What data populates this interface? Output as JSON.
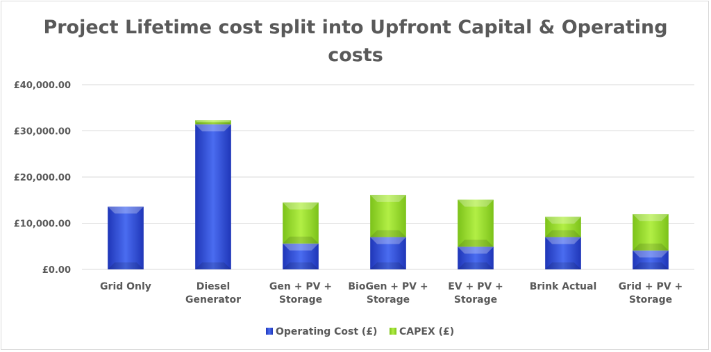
{
  "chart_data": {
    "type": "bar",
    "stacked": true,
    "title_lines": [
      "Project Lifetime cost split into Upfront Capital & Operating",
      "costs"
    ],
    "categories": [
      [
        "Grid Only"
      ],
      [
        "Diesel",
        "Generator"
      ],
      [
        "Gen + PV +",
        "Storage"
      ],
      [
        "BioGen + PV +",
        "Storage"
      ],
      [
        "EV + PV +",
        "Storage"
      ],
      [
        "Brink Actual"
      ],
      [
        "Grid + PV +",
        "Storage"
      ]
    ],
    "series": [
      {
        "name": "Operating Cost (£)",
        "color": "#2f4fd8",
        "values": [
          13600,
          31400,
          5600,
          7000,
          4900,
          7000,
          4100
        ]
      },
      {
        "name": "CAPEX (£)",
        "color": "#92d82b",
        "values": [
          0,
          900,
          8900,
          9100,
          10200,
          4400,
          7900
        ]
      }
    ],
    "ylim": [
      0,
      40000
    ],
    "yticks": [
      0,
      10000,
      20000,
      30000,
      40000
    ],
    "ytick_labels": [
      "£0.00",
      "£10,000.00",
      "£20,000.00",
      "£30,000.00",
      "£40,000.00"
    ],
    "grid": true,
    "legend_position": "bottom"
  }
}
